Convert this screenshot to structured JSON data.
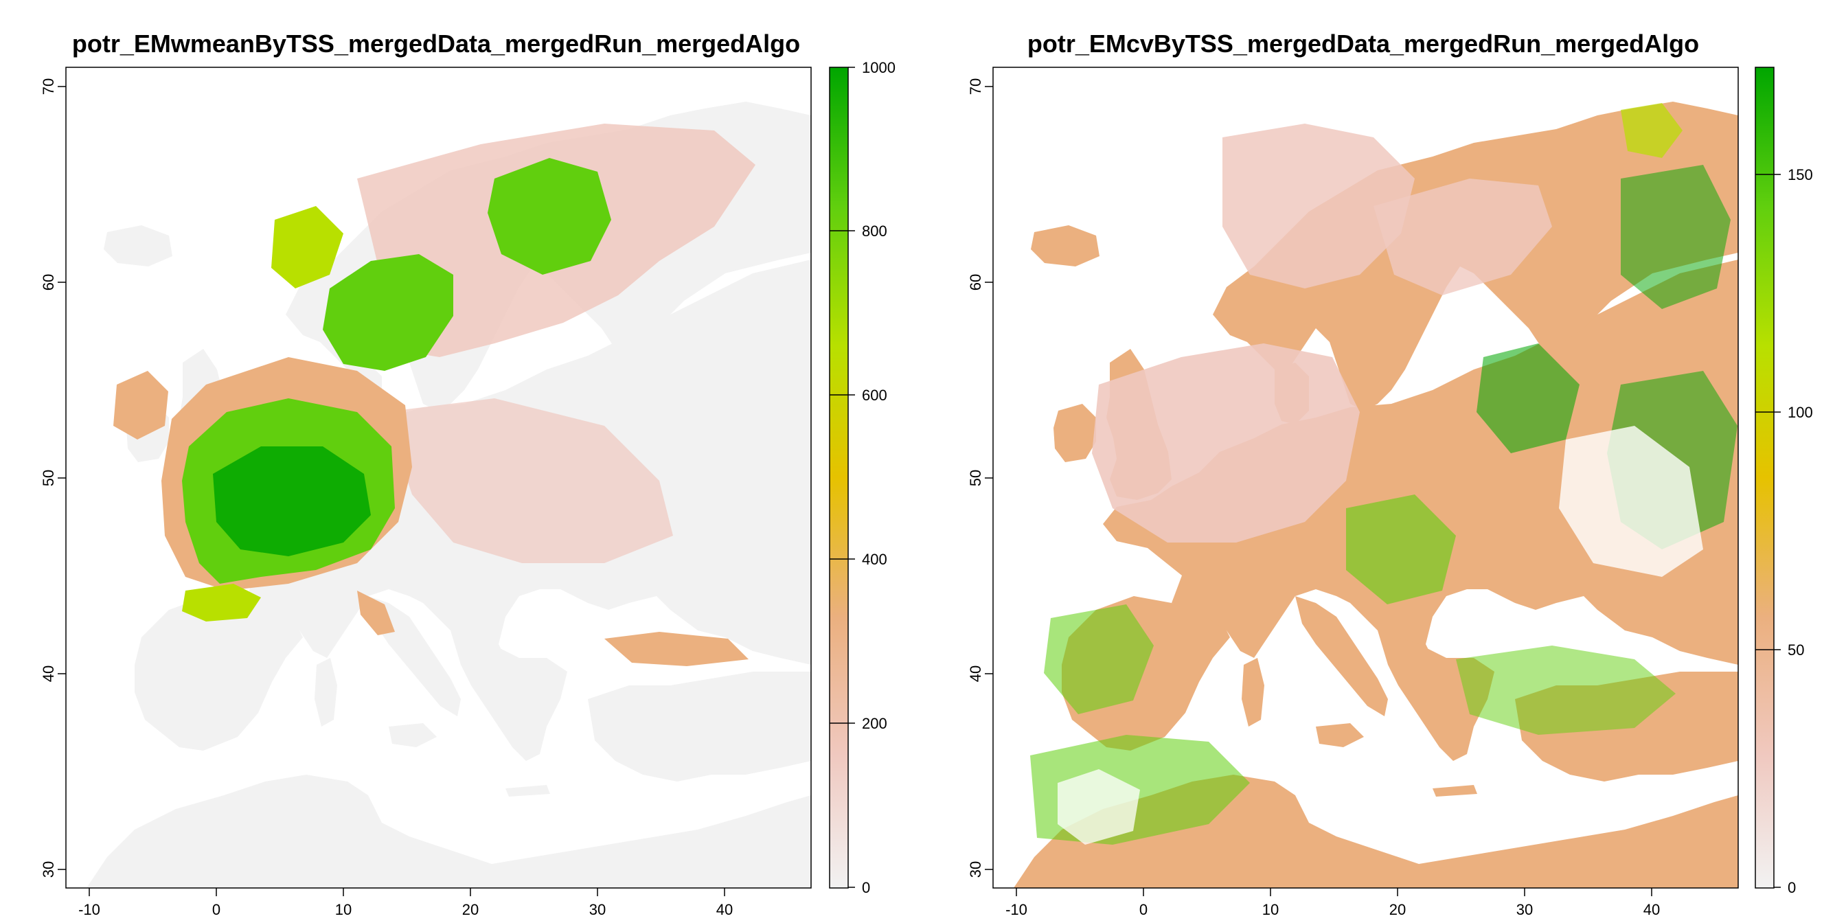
{
  "figure": {
    "panels": [
      {
        "id": "left",
        "title": "potr_EMwmeanByTSS_mergedData_mergedRun_mergedAlgo",
        "x_ticks": [
          "-10",
          "0",
          "10",
          "20",
          "30",
          "40"
        ],
        "y_ticks": [
          "30",
          "40",
          "50",
          "60",
          "70"
        ],
        "legend_ticks": [
          "0",
          "200",
          "400",
          "600",
          "800",
          "1000"
        ],
        "legend_range": [
          0,
          1000
        ]
      },
      {
        "id": "right",
        "title": "potr_EMcvByTSS_mergedData_mergedRun_mergedAlgo",
        "x_ticks": [
          "-10",
          "0",
          "10",
          "20",
          "30",
          "40"
        ],
        "y_ticks": [
          "30",
          "40",
          "50",
          "60",
          "70"
        ],
        "legend_ticks": [
          "0",
          "50",
          "100",
          "150"
        ],
        "legend_range": [
          0,
          172
        ]
      }
    ],
    "colors": {
      "ramp": [
        "#f2f2f2",
        "#f0c9c0",
        "#ebb07f",
        "#e6c200",
        "#b8e000",
        "#61cf0e",
        "#00a600"
      ],
      "no_data": "#ffffff",
      "frame": "#000000"
    }
  }
}
